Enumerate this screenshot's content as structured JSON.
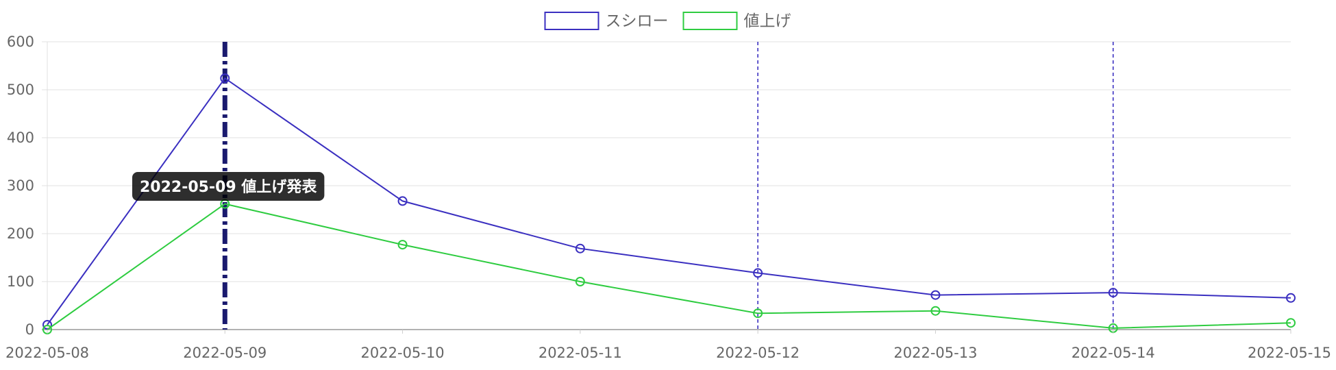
{
  "chart_data": {
    "type": "line",
    "x": [
      "2022-05-08",
      "2022-05-09",
      "2022-05-10",
      "2022-05-11",
      "2022-05-12",
      "2022-05-13",
      "2022-05-14",
      "2022-05-15"
    ],
    "series": [
      {
        "name": "スシロー",
        "color": "#3a2fc0",
        "values": [
          10,
          524,
          268,
          169,
          118,
          72,
          77,
          66
        ]
      },
      {
        "name": "値上げ",
        "color": "#2ecc40",
        "values": [
          0,
          262,
          177,
          100,
          34,
          39,
          3,
          14
        ]
      }
    ],
    "ylim": [
      0,
      600
    ],
    "yticks": [
      0,
      100,
      200,
      300,
      400,
      500,
      600
    ],
    "grid": true,
    "legend": "top-center",
    "annotations": [
      {
        "x": "2022-05-09",
        "style": "dash-dot",
        "color": "#1a1a6e",
        "label": "2022-05-09  値上げ発表"
      },
      {
        "x": "2022-05-12",
        "style": "dashed",
        "color": "#3a2fc0"
      },
      {
        "x": "2022-05-14",
        "style": "dashed",
        "color": "#3a2fc0"
      }
    ]
  }
}
